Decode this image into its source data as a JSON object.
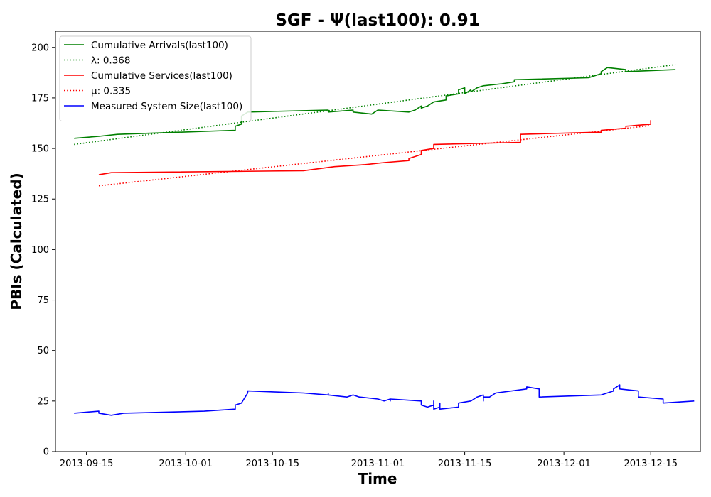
{
  "chart_data": {
    "type": "line",
    "title": "SGF -  Ψ(last100): 0.91",
    "xlabel": "Time",
    "ylabel": "PBIs (Calculated)",
    "xlim": [
      "2013-09-10",
      "2013-12-23"
    ],
    "ylim": [
      0,
      208
    ],
    "x_ticks": [
      "2013-09-15",
      "2013-10-01",
      "2013-10-15",
      "2013-11-01",
      "2013-11-15",
      "2013-12-01",
      "2013-12-15"
    ],
    "y_ticks": [
      0,
      25,
      50,
      75,
      100,
      125,
      150,
      175,
      200
    ],
    "grid": false,
    "legend_position": "top-left",
    "series": [
      {
        "name": "Cumulative Arrivals(last100)",
        "color": "#008000",
        "style": "solid",
        "points": [
          [
            "2013-09-13",
            155
          ],
          [
            "2013-09-17",
            156
          ],
          [
            "2013-09-20",
            157
          ],
          [
            "2013-10-09",
            159
          ],
          [
            "2013-10-09",
            161
          ],
          [
            "2013-10-10",
            162
          ],
          [
            "2013-10-10",
            166
          ],
          [
            "2013-10-11",
            168
          ],
          [
            "2013-10-24",
            169
          ],
          [
            "2013-10-24",
            168
          ],
          [
            "2013-10-28",
            169
          ],
          [
            "2013-10-28",
            168
          ],
          [
            "2013-10-31",
            167
          ],
          [
            "2013-11-01",
            169
          ],
          [
            "2013-11-06",
            168
          ],
          [
            "2013-11-07",
            169
          ],
          [
            "2013-11-08",
            171
          ],
          [
            "2013-11-08",
            170
          ],
          [
            "2013-11-09",
            171
          ],
          [
            "2013-11-10",
            173
          ],
          [
            "2013-11-12",
            174
          ],
          [
            "2013-11-12",
            176
          ],
          [
            "2013-11-14",
            177
          ],
          [
            "2013-11-14",
            179
          ],
          [
            "2013-11-15",
            180
          ],
          [
            "2013-11-15",
            177
          ],
          [
            "2013-11-16",
            179
          ],
          [
            "2013-11-16",
            178
          ],
          [
            "2013-11-17",
            180
          ],
          [
            "2013-11-18",
            181
          ],
          [
            "2013-11-21",
            182
          ],
          [
            "2013-11-23",
            183
          ],
          [
            "2013-11-23",
            184
          ],
          [
            "2013-12-05",
            185
          ],
          [
            "2013-12-07",
            187
          ],
          [
            "2013-12-07",
            188
          ],
          [
            "2013-12-08",
            190
          ],
          [
            "2013-12-11",
            189
          ],
          [
            "2013-12-11",
            188
          ],
          [
            "2013-12-19",
            189
          ]
        ]
      },
      {
        "name": "λ: 0.368",
        "color": "#008000",
        "style": "dotted",
        "points": [
          [
            "2013-09-13",
            152
          ],
          [
            "2013-12-19",
            191.5
          ]
        ]
      },
      {
        "name": "Cumulative Services(last100)",
        "color": "#ff0000",
        "style": "solid",
        "points": [
          [
            "2013-09-17",
            137
          ],
          [
            "2013-09-19",
            138
          ],
          [
            "2013-10-20",
            139
          ],
          [
            "2013-10-25",
            141
          ],
          [
            "2013-10-30",
            142
          ],
          [
            "2013-11-02",
            143
          ],
          [
            "2013-11-06",
            144
          ],
          [
            "2013-11-06",
            145
          ],
          [
            "2013-11-08",
            147
          ],
          [
            "2013-11-08",
            149
          ],
          [
            "2013-11-10",
            150
          ],
          [
            "2013-11-10",
            152
          ],
          [
            "2013-11-24",
            153
          ],
          [
            "2013-11-24",
            157
          ],
          [
            "2013-12-06",
            158
          ],
          [
            "2013-12-07",
            158
          ],
          [
            "2013-12-07",
            159
          ],
          [
            "2013-12-11",
            160
          ],
          [
            "2013-12-11",
            161
          ],
          [
            "2013-12-15",
            162
          ],
          [
            "2013-12-15",
            164
          ]
        ]
      },
      {
        "name": "μ: 0.335",
        "color": "#ff0000",
        "style": "dotted",
        "points": [
          [
            "2013-09-17",
            131.5
          ],
          [
            "2013-12-15",
            161.3
          ]
        ]
      },
      {
        "name": "Measured System Size(last100)",
        "color": "#0000ff",
        "style": "solid",
        "points": [
          [
            "2013-09-13",
            19
          ],
          [
            "2013-09-17",
            20
          ],
          [
            "2013-09-17",
            19
          ],
          [
            "2013-09-19",
            18
          ],
          [
            "2013-09-21",
            19
          ],
          [
            "2013-10-04",
            20
          ],
          [
            "2013-10-09",
            21
          ],
          [
            "2013-10-09",
            23
          ],
          [
            "2013-10-10",
            24
          ],
          [
            "2013-10-11",
            29
          ],
          [
            "2013-10-11",
            30
          ],
          [
            "2013-10-20",
            29
          ],
          [
            "2013-10-24",
            28
          ],
          [
            "2013-10-24",
            29
          ],
          [
            "2013-10-24",
            28
          ],
          [
            "2013-10-27",
            27
          ],
          [
            "2013-10-28",
            28
          ],
          [
            "2013-10-29",
            27
          ],
          [
            "2013-11-01",
            26
          ],
          [
            "2013-11-02",
            25
          ],
          [
            "2013-11-03",
            26
          ],
          [
            "2013-11-03",
            25
          ],
          [
            "2013-11-03",
            26
          ],
          [
            "2013-11-08",
            25
          ],
          [
            "2013-11-08",
            23
          ],
          [
            "2013-11-09",
            22
          ],
          [
            "2013-11-10",
            23
          ],
          [
            "2013-11-10",
            25
          ],
          [
            "2013-11-10",
            21
          ],
          [
            "2013-11-11",
            22
          ],
          [
            "2013-11-11",
            24
          ],
          [
            "2013-11-11",
            21
          ],
          [
            "2013-11-14",
            22
          ],
          [
            "2013-11-14",
            24
          ],
          [
            "2013-11-16",
            25
          ],
          [
            "2013-11-17",
            27
          ],
          [
            "2013-11-18",
            28
          ],
          [
            "2013-11-18",
            25
          ],
          [
            "2013-11-18",
            27
          ],
          [
            "2013-11-19",
            27
          ],
          [
            "2013-11-20",
            29
          ],
          [
            "2013-11-25",
            31
          ],
          [
            "2013-11-25",
            32
          ],
          [
            "2013-11-27",
            31
          ],
          [
            "2013-11-27",
            27
          ],
          [
            "2013-12-07",
            28
          ],
          [
            "2013-12-09",
            30
          ],
          [
            "2013-12-09",
            31
          ],
          [
            "2013-12-10",
            33
          ],
          [
            "2013-12-10",
            31
          ],
          [
            "2013-12-13",
            30
          ],
          [
            "2013-12-13",
            27
          ],
          [
            "2013-12-17",
            26
          ],
          [
            "2013-12-17",
            24
          ],
          [
            "2013-12-22",
            25
          ]
        ]
      }
    ]
  }
}
